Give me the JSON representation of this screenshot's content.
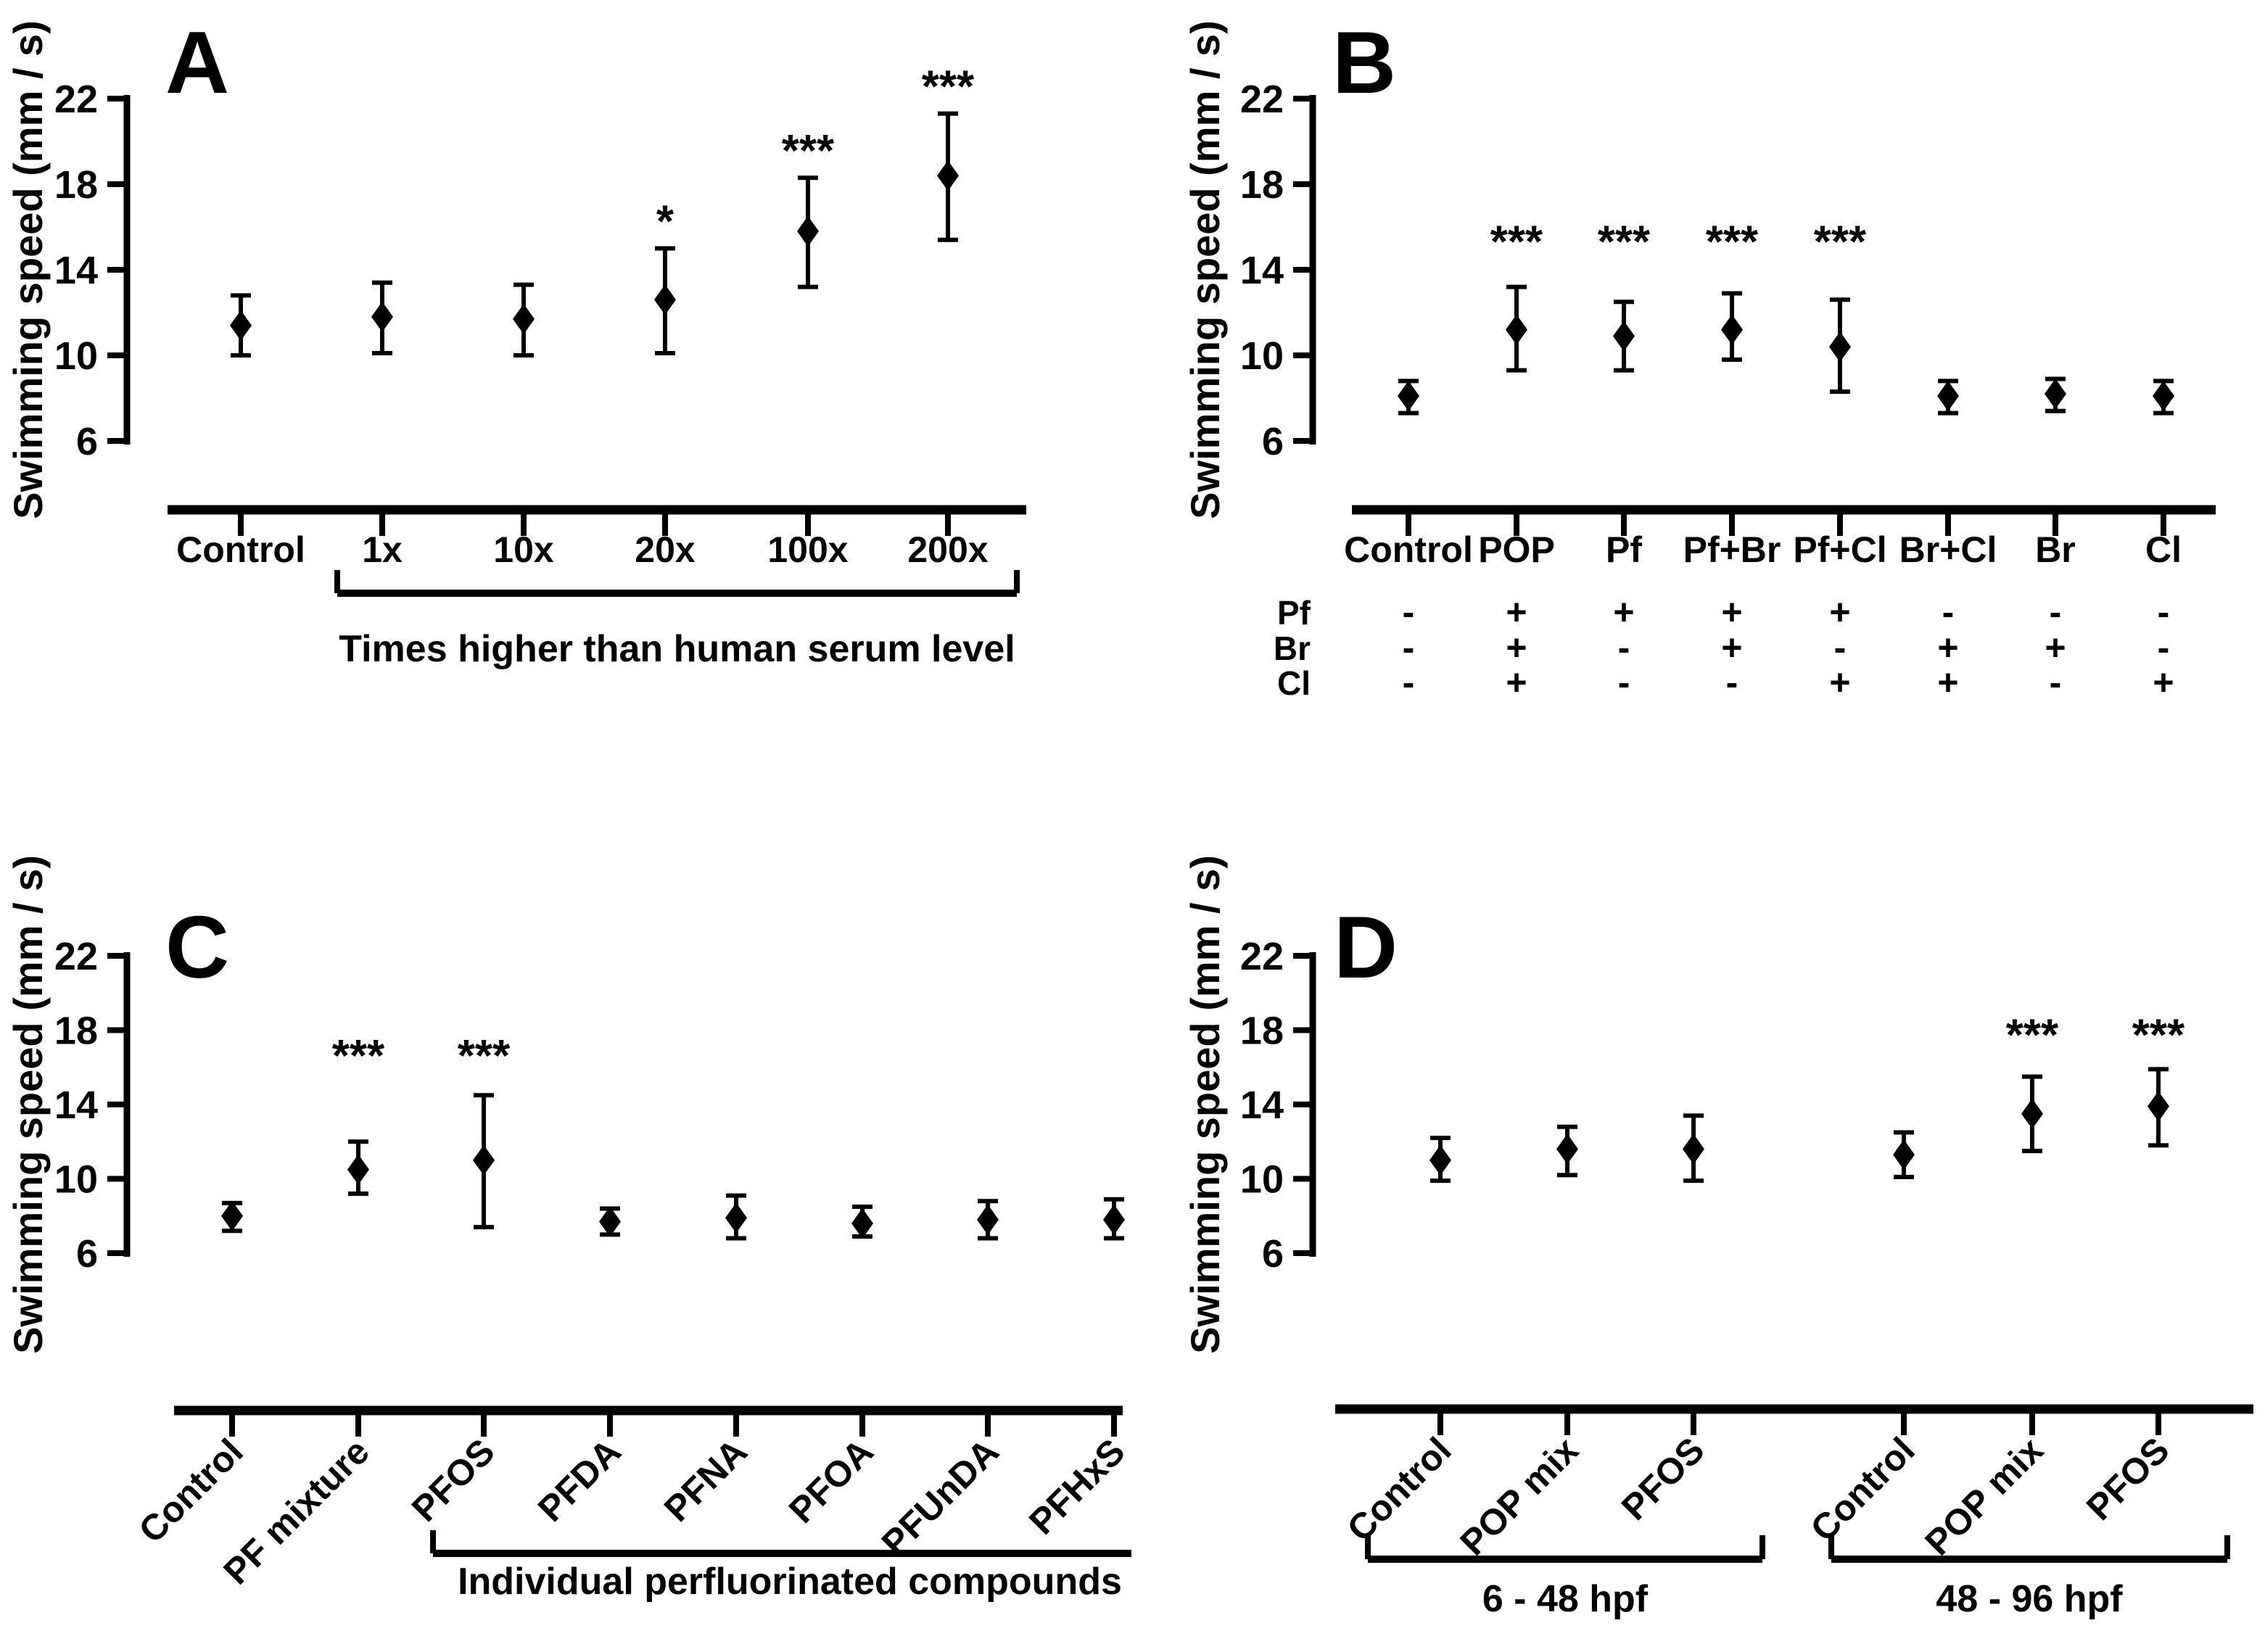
{
  "figure_title": "",
  "accent_color": "#000000",
  "background_color": "#ffffff",
  "chart_data": [
    {
      "panel": "A",
      "type": "scatter",
      "ylabel": "Swimming speed (mm / s)",
      "yticks": [
        6,
        10,
        14,
        18,
        22
      ],
      "ylim": [
        6,
        22
      ],
      "grid": "off",
      "marker": "diamond",
      "sig_y": null,
      "points": [
        {
          "label": "Control",
          "mean": 11.4,
          "lo": 10.0,
          "hi": 12.8,
          "sig": ""
        },
        {
          "label": "1x",
          "mean": 11.8,
          "lo": 10.1,
          "hi": 13.4,
          "sig": ""
        },
        {
          "label": "10x",
          "mean": 11.7,
          "lo": 10.0,
          "hi": 13.3,
          "sig": ""
        },
        {
          "label": "20x",
          "mean": 12.6,
          "lo": 10.1,
          "hi": 15.0,
          "sig": "*"
        },
        {
          "label": "100x",
          "mean": 15.8,
          "lo": 13.2,
          "hi": 18.3,
          "sig": "***"
        },
        {
          "label": "200x",
          "mean": 18.4,
          "lo": 15.4,
          "hi": 21.3,
          "sig": "***"
        }
      ],
      "bracket": {
        "from": 1,
        "to": 5,
        "label": "Times higher than human serum level"
      }
    },
    {
      "panel": "B",
      "type": "scatter",
      "ylabel": "Swimming speed (mm / s)",
      "yticks": [
        6,
        10,
        14,
        18,
        22
      ],
      "ylim": [
        6,
        22
      ],
      "grid": "off",
      "marker": "diamond",
      "sig_y": 14.6,
      "points": [
        {
          "label": "Control",
          "mean": 8.1,
          "lo": 7.3,
          "hi": 8.8,
          "sig": ""
        },
        {
          "label": "POP",
          "mean": 11.2,
          "lo": 9.3,
          "hi": 13.2,
          "sig": "***"
        },
        {
          "label": "Pf",
          "mean": 10.9,
          "lo": 9.3,
          "hi": 12.5,
          "sig": "***"
        },
        {
          "label": "Pf+Br",
          "mean": 11.2,
          "lo": 9.8,
          "hi": 12.9,
          "sig": "***"
        },
        {
          "label": "Pf+Cl",
          "mean": 10.4,
          "lo": 8.3,
          "hi": 12.6,
          "sig": "***"
        },
        {
          "label": "Br+Cl",
          "mean": 8.1,
          "lo": 7.3,
          "hi": 8.8,
          "sig": ""
        },
        {
          "label": "Br",
          "mean": 8.2,
          "lo": 7.4,
          "hi": 8.9,
          "sig": ""
        },
        {
          "label": "Cl",
          "mean": 8.1,
          "lo": 7.3,
          "hi": 8.8,
          "sig": ""
        }
      ],
      "matrix": {
        "rows": [
          {
            "name": "Pf",
            "values": [
              "-",
              "+",
              "+",
              "+",
              "+",
              "-",
              "-",
              "-"
            ]
          },
          {
            "name": "Br",
            "values": [
              "-",
              "+",
              "-",
              "+",
              "-",
              "+",
              "+",
              "-"
            ]
          },
          {
            "name": "Cl",
            "values": [
              "-",
              "+",
              "-",
              "-",
              "+",
              "+",
              "-",
              "+"
            ]
          }
        ]
      }
    },
    {
      "panel": "C",
      "type": "scatter",
      "ylabel": "Swimming speed (mm / s)",
      "yticks": [
        6,
        10,
        14,
        18,
        22
      ],
      "ylim": [
        6,
        22
      ],
      "grid": "off",
      "marker": "diamond",
      "sig_y": 15.8,
      "points": [
        {
          "label": "Control",
          "mean": 8.0,
          "lo": 7.2,
          "hi": 8.7,
          "sig": ""
        },
        {
          "label": "PF mixture",
          "mean": 10.5,
          "lo": 9.2,
          "hi": 12.0,
          "sig": "***"
        },
        {
          "label": "PFOS",
          "mean": 11.0,
          "lo": 7.4,
          "hi": 14.5,
          "sig": "***"
        },
        {
          "label": "PFDA",
          "mean": 7.7,
          "lo": 7.0,
          "hi": 8.4,
          "sig": ""
        },
        {
          "label": "PFNA",
          "mean": 7.9,
          "lo": 6.8,
          "hi": 9.1,
          "sig": ""
        },
        {
          "label": "PFOA",
          "mean": 7.6,
          "lo": 6.9,
          "hi": 8.5,
          "sig": ""
        },
        {
          "label": "PFUnDA",
          "mean": 7.8,
          "lo": 6.8,
          "hi": 8.8,
          "sig": ""
        },
        {
          "label": "PFHxS",
          "mean": 7.8,
          "lo": 6.8,
          "hi": 8.9,
          "sig": ""
        }
      ],
      "bracket": {
        "from": 2,
        "to": 7,
        "label": "Individual perfluorinated compounds"
      }
    },
    {
      "panel": "D",
      "type": "scatter",
      "ylabel": "Swimming speed (mm / s)",
      "yticks": [
        6,
        10,
        14,
        18,
        22
      ],
      "ylim": [
        6,
        22
      ],
      "grid": "off",
      "marker": "diamond",
      "sig_y": 16.9,
      "points": [
        {
          "label": "Control",
          "mean": 11.0,
          "lo": 9.9,
          "hi": 12.2,
          "sig": ""
        },
        {
          "label": "POP mix",
          "mean": 11.6,
          "lo": 10.2,
          "hi": 12.8,
          "sig": ""
        },
        {
          "label": "PFOS",
          "mean": 11.6,
          "lo": 9.9,
          "hi": 13.4,
          "sig": ""
        },
        {
          "label": "Control",
          "mean": 11.3,
          "lo": 10.1,
          "hi": 12.5,
          "sig": ""
        },
        {
          "label": "POP mix",
          "mean": 13.5,
          "lo": 11.5,
          "hi": 15.5,
          "sig": "***"
        },
        {
          "label": "PFOS",
          "mean": 13.9,
          "lo": 11.8,
          "hi": 15.9,
          "sig": "***"
        }
      ],
      "groups": [
        {
          "label": "6 - 48 hpf",
          "from": 0,
          "to": 2
        },
        {
          "label": "48 - 96 hpf",
          "from": 3,
          "to": 5
        }
      ]
    }
  ]
}
